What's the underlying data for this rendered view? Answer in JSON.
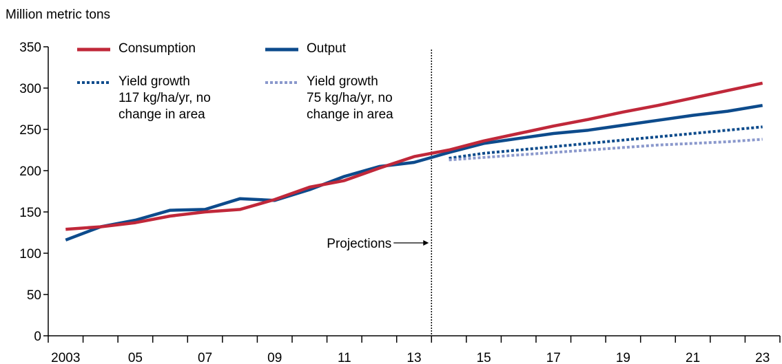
{
  "chart_data": {
    "type": "line",
    "y_label": "Million metric tons",
    "annotation": "Projections",
    "categories": [
      "2003",
      null,
      "05",
      null,
      "07",
      null,
      "09",
      null,
      "11",
      null,
      "13",
      null,
      "15",
      null,
      "17",
      null,
      "19",
      null,
      "21",
      null,
      "23"
    ],
    "ylim": [
      0,
      350
    ],
    "yticks": [
      0,
      50,
      100,
      150,
      200,
      250,
      300,
      350
    ],
    "series": [
      {
        "name": "Consumption",
        "color": "#c0283a",
        "style": "solid",
        "values": [
          129,
          132,
          137,
          145,
          150,
          153,
          165,
          180,
          188,
          203,
          217,
          225,
          236,
          245,
          254,
          262,
          271,
          279,
          288,
          297,
          306
        ]
      },
      {
        "name": "Output",
        "color": "#0d4b8c",
        "style": "solid",
        "values": [
          116,
          132,
          140,
          152,
          153,
          166,
          164,
          177,
          193,
          205,
          210,
          222,
          233,
          239,
          245,
          249,
          255,
          261,
          267,
          272,
          279
        ]
      },
      {
        "name": "Yield growth\n117 kg/ha/yr, no\nchange in area",
        "color": "#0d4b8c",
        "style": "dotted",
        "values": [
          null,
          null,
          null,
          null,
          null,
          null,
          null,
          null,
          null,
          null,
          null,
          215,
          221,
          225,
          229,
          233,
          237,
          241,
          245,
          249,
          253
        ]
      },
      {
        "name": "Yield growth\n75 kg/ha/yr, no\nchange in area",
        "color": "#8a98cc",
        "style": "dotted",
        "values": [
          null,
          null,
          null,
          null,
          null,
          null,
          null,
          null,
          null,
          null,
          null,
          213,
          216,
          219,
          222,
          225,
          228,
          231,
          233,
          235,
          238
        ]
      }
    ]
  }
}
